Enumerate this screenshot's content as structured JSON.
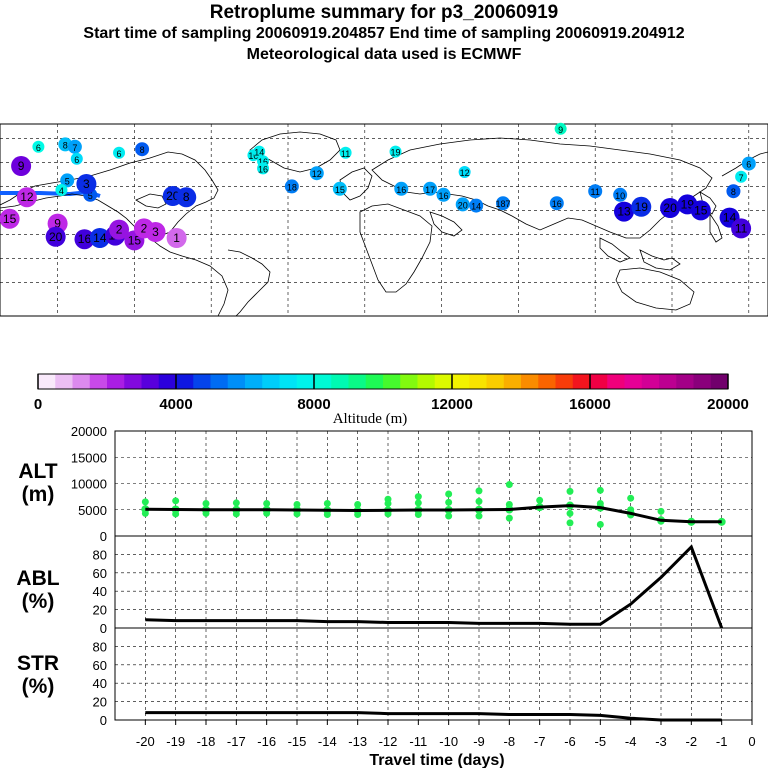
{
  "header": {
    "title": "Retroplume summary for p3_20060919",
    "sampling": "Start time of sampling 20060919.204857     End time of sampling 20060919.204912",
    "met": "Meteorological data used is ECMWF"
  },
  "map": {
    "points": [
      {
        "label": "9",
        "lon": 102,
        "lat": 88,
        "alt": 8500
      },
      {
        "label": "6",
        "lon": -170,
        "lat": 73,
        "alt": 8000
      },
      {
        "label": "8",
        "lon": -156,
        "lat": 75,
        "alt": 6500
      },
      {
        "label": "7",
        "lon": -151,
        "lat": 73,
        "alt": 6000
      },
      {
        "label": "6",
        "lon": -150,
        "lat": 63,
        "alt": 7000
      },
      {
        "label": "6",
        "lon": -128,
        "lat": 68,
        "alt": 7500
      },
      {
        "label": "8",
        "lon": -116,
        "lat": 71,
        "alt": 5000
      },
      {
        "label": "10",
        "lon": -58,
        "lat": 66,
        "alt": 7600
      },
      {
        "label": "14",
        "lon": -55,
        "lat": 69,
        "alt": 7600
      },
      {
        "label": "16",
        "lon": -53,
        "lat": 61,
        "alt": 7600
      },
      {
        "label": "16",
        "lon": -53,
        "lat": 55,
        "alt": 7600
      },
      {
        "label": "11",
        "lon": -10,
        "lat": 68,
        "alt": 7600
      },
      {
        "label": "19",
        "lon": 16,
        "lat": 69,
        "alt": 7600
      },
      {
        "label": "12",
        "lon": 52,
        "lat": 52,
        "alt": 7000
      },
      {
        "label": "5",
        "lon": -155,
        "lat": 45,
        "alt": 6000
      },
      {
        "label": "4",
        "lon": -158,
        "lat": 37,
        "alt": 7800
      },
      {
        "label": "5",
        "lon": -143,
        "lat": 33,
        "alt": 5000
      },
      {
        "label": "3",
        "lon": -145,
        "lat": 42,
        "alt": 4500
      },
      {
        "label": "9",
        "lon": -179,
        "lat": 57,
        "alt": 3000
      },
      {
        "label": "12",
        "lon": -176,
        "lat": 31,
        "alt": 2000
      },
      {
        "label": "15",
        "lon": -185,
        "lat": 13,
        "alt": 2000
      },
      {
        "label": "9",
        "lon": -160,
        "lat": 9,
        "alt": 2000
      },
      {
        "label": "20",
        "lon": -161,
        "lat": -2,
        "alt": 3500
      },
      {
        "label": "16",
        "lon": -146,
        "lat": -4,
        "alt": 3500
      },
      {
        "label": "14",
        "lon": -138,
        "lat": -3,
        "alt": 4500
      },
      {
        "label": "19",
        "lon": -130,
        "lat": -1,
        "alt": 3500
      },
      {
        "label": "2",
        "lon": -128,
        "lat": 4,
        "alt": 2500
      },
      {
        "label": "15",
        "lon": -120,
        "lat": -5,
        "alt": 2500
      },
      {
        "label": "2",
        "lon": -115,
        "lat": 5,
        "alt": 2000
      },
      {
        "label": "3",
        "lon": -109,
        "lat": 2,
        "alt": 2000
      },
      {
        "label": "1",
        "lon": -98,
        "lat": -3,
        "alt": 1500
      },
      {
        "label": "20",
        "lon": -100,
        "lat": 32,
        "alt": 4500
      },
      {
        "label": "8",
        "lon": -93,
        "lat": 31,
        "alt": 4500
      },
      {
        "label": "12",
        "lon": -25,
        "lat": 51,
        "alt": 6000
      },
      {
        "label": "18",
        "lon": -38,
        "lat": 40,
        "alt": 5500
      },
      {
        "label": "15",
        "lon": -13,
        "lat": 38,
        "alt": 6500
      },
      {
        "label": "16",
        "lon": 19,
        "lat": 38,
        "alt": 6000
      },
      {
        "label": "17",
        "lon": 34,
        "lat": 38,
        "alt": 6000
      },
      {
        "label": "16",
        "lon": 41,
        "lat": 33,
        "alt": 6000
      },
      {
        "label": "20",
        "lon": 51,
        "lat": 25,
        "alt": 6000
      },
      {
        "label": "14",
        "lon": 58,
        "lat": 24,
        "alt": 5500
      },
      {
        "label": "187",
        "lon": 72,
        "lat": 26,
        "alt": 5500
      },
      {
        "label": "16",
        "lon": 100,
        "lat": 26,
        "alt": 5500
      },
      {
        "label": "11",
        "lon": 120,
        "lat": 36,
        "alt": 5500
      },
      {
        "label": "10",
        "lon": 133,
        "lat": 33,
        "alt": 5500
      },
      {
        "label": "13",
        "lon": 135,
        "lat": 19,
        "alt": 4000
      },
      {
        "label": "19",
        "lon": 144,
        "lat": 23,
        "alt": 4500
      },
      {
        "label": "20",
        "lon": 159,
        "lat": 22,
        "alt": 4000
      },
      {
        "label": "19",
        "lon": 168,
        "lat": 25,
        "alt": 4000
      },
      {
        "label": "15",
        "lon": 175,
        "lat": 20,
        "alt": 4000
      },
      {
        "label": "8",
        "lon": 192,
        "lat": 36,
        "alt": 5000
      },
      {
        "label": "7",
        "lon": 196,
        "lat": 48,
        "alt": 7500
      },
      {
        "label": "6",
        "lon": 200,
        "lat": 59,
        "alt": 6000
      },
      {
        "label": "14",
        "lon": 190,
        "lat": 14,
        "alt": 4000
      },
      {
        "label": "11",
        "lon": 196,
        "lat": 5,
        "alt": 3500
      }
    ]
  },
  "colorbar": {
    "min": 0,
    "max": 20000,
    "ticks": [
      "0",
      "4000",
      "8000",
      "12000",
      "16000",
      "20000"
    ],
    "label": "Altitude (m)"
  },
  "panels": {
    "alt_label": [
      "ALT",
      "(m)"
    ],
    "abl_label": [
      "ABL",
      "(%)"
    ],
    "str_label": [
      "STR",
      "(%)"
    ],
    "alt_ticks": [
      "20000",
      "15000",
      "10000",
      "5000",
      "0"
    ],
    "pct_ticks": [
      "80",
      "60",
      "40",
      "20",
      "0"
    ],
    "x_ticks": [
      "-20",
      "-19",
      "-18",
      "-17",
      "-16",
      "-15",
      "-14",
      "-13",
      "-12",
      "-11",
      "-10",
      "-9",
      "-8",
      "-7",
      "-6",
      "-5",
      "-4",
      "-3",
      "-2",
      "-1",
      "0"
    ],
    "x_label": "Travel time (days)"
  },
  "chart_data": {
    "type": "line",
    "x": [
      -20,
      -19,
      -18,
      -17,
      -16,
      -15,
      -14,
      -13,
      -12,
      -11,
      -10,
      -9,
      -8,
      -7,
      -6,
      -5,
      -4,
      -3,
      -2,
      -1
    ],
    "series": [
      {
        "name": "ALT",
        "values": [
          5100,
          5050,
          5000,
          5000,
          5000,
          4950,
          4900,
          4850,
          4900,
          4950,
          4950,
          5000,
          5050,
          5500,
          5800,
          5400,
          4300,
          3000,
          2700,
          2700
        ],
        "scatter": [
          [
            -20,
            6500
          ],
          [
            -20,
            4300
          ],
          [
            -19,
            6700
          ],
          [
            -19,
            4200
          ],
          [
            -18,
            6200
          ],
          [
            -18,
            4300
          ],
          [
            -17,
            6300
          ],
          [
            -17,
            4200
          ],
          [
            -16,
            6200
          ],
          [
            -16,
            4300
          ],
          [
            -15,
            6000
          ],
          [
            -15,
            4200
          ],
          [
            -14,
            6200
          ],
          [
            -14,
            4100
          ],
          [
            -13,
            6000
          ],
          [
            -13,
            4100
          ],
          [
            -12,
            7000
          ],
          [
            -12,
            6200
          ],
          [
            -12,
            4200
          ],
          [
            -11,
            7500
          ],
          [
            -11,
            6300
          ],
          [
            -11,
            4100
          ],
          [
            -10,
            8000
          ],
          [
            -10,
            6400
          ],
          [
            -10,
            3800
          ],
          [
            -9,
            8600
          ],
          [
            -9,
            6600
          ],
          [
            -9,
            3800
          ],
          [
            -8,
            9800
          ],
          [
            -8,
            6000
          ],
          [
            -8,
            3400
          ],
          [
            -7,
            6800
          ],
          [
            -6,
            8500
          ],
          [
            -6,
            4300
          ],
          [
            -6,
            2500
          ],
          [
            -5,
            8700
          ],
          [
            -5,
            6200
          ],
          [
            -5,
            2200
          ],
          [
            -4,
            7200
          ],
          [
            -4,
            5000
          ],
          [
            -4,
            4000
          ],
          [
            -3,
            4700
          ],
          [
            -3,
            2800
          ],
          [
            -2,
            2800
          ],
          [
            -1,
            2700
          ]
        ]
      },
      {
        "name": "ABL",
        "values": [
          9,
          8,
          8,
          8,
          8,
          8,
          7,
          7,
          6,
          6,
          6,
          5,
          5,
          5,
          4,
          4,
          26,
          55,
          88,
          0
        ]
      },
      {
        "name": "STR",
        "values": [
          8,
          8,
          8,
          8,
          8,
          8,
          8,
          8,
          7,
          7,
          7,
          7,
          6,
          6,
          6,
          5,
          2,
          0,
          0,
          0
        ]
      }
    ],
    "ylim_alt": [
      0,
      20000
    ],
    "ylim_pct": [
      0,
      100
    ],
    "xlabel": "Travel time (days)"
  }
}
